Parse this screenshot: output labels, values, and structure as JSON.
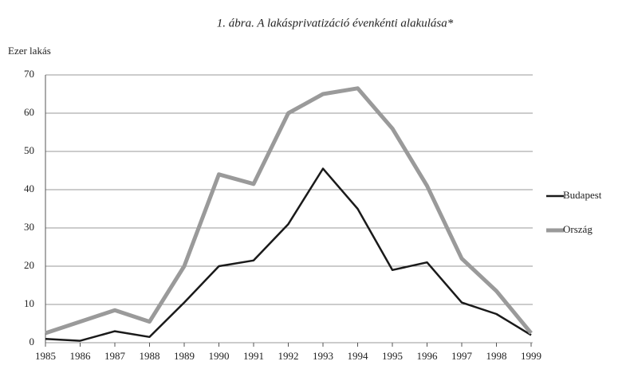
{
  "chart_data": {
    "type": "line",
    "title": "1. ábra. A lakásprivatizáció évenkénti alakulása*",
    "y_label": "Ezer lakás",
    "categories": [
      "1985",
      "1986",
      "1987",
      "1988",
      "1989",
      "1990",
      "1991",
      "1992",
      "1993",
      "1994",
      "1995",
      "1996",
      "1997",
      "1998",
      "1999"
    ],
    "series": [
      {
        "name": "Budapest",
        "color": "#1a1a1a",
        "values": [
          1,
          0.5,
          3,
          1.5,
          10.5,
          20,
          21.5,
          31,
          45.5,
          35,
          19,
          21,
          10.5,
          7.5,
          2
        ]
      },
      {
        "name": "Ország",
        "color": "#9a9a9a",
        "values": [
          2.5,
          5.5,
          8.5,
          5.5,
          20,
          44,
          41.5,
          60,
          65,
          66.5,
          56,
          41,
          22,
          13.5,
          2.5
        ]
      }
    ],
    "ylim": [
      0,
      70
    ],
    "yticks": [
      0,
      10,
      20,
      30,
      40,
      50,
      60,
      70
    ],
    "grid": true,
    "legend": "right"
  }
}
